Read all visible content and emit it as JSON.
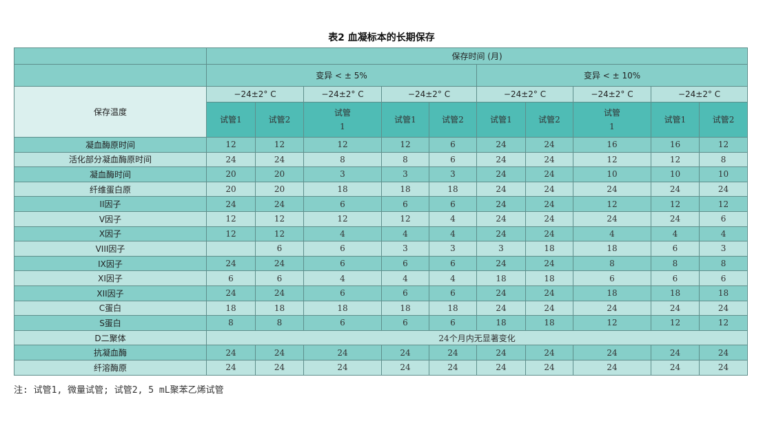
{
  "title": "表2 血凝标本的长期保存",
  "header": {
    "storage_time": "保存时间 (月)",
    "variation_5": "变异 < ± 5%",
    "variation_10": "变异 < ± 10%",
    "temperature_label": "保存温度",
    "temps": [
      "−24±2° C",
      "−24±2° C",
      "−24±2° C",
      "−24±2° C",
      "−24±2° C",
      "−24±2° C"
    ],
    "tubes": [
      "试管1",
      "试管2",
      "试管\n1",
      "试管1",
      "试管2",
      "试管1",
      "试管2",
      "试管\n1",
      "试管1",
      "试管2"
    ]
  },
  "rows": [
    {
      "label": "凝血酶原时间",
      "values": [
        "12",
        "12",
        "12",
        "12",
        "6",
        "24",
        "24",
        "16",
        "16",
        "12"
      ]
    },
    {
      "label": "活化部分凝血酶原时间",
      "values": [
        "24",
        "24",
        "8",
        "8",
        "6",
        "24",
        "24",
        "12",
        "12",
        "8"
      ]
    },
    {
      "label": "凝血酶时间",
      "values": [
        "20",
        "20",
        "3",
        "3",
        "3",
        "24",
        "24",
        "10",
        "10",
        "10"
      ]
    },
    {
      "label": "纤维蛋白原",
      "values": [
        "20",
        "20",
        "18",
        "18",
        "18",
        "24",
        "24",
        "24",
        "24",
        "24"
      ]
    },
    {
      "label": "II因子",
      "values": [
        "24",
        "24",
        "6",
        "6",
        "6",
        "24",
        "24",
        "12",
        "12",
        "12"
      ]
    },
    {
      "label": "V因子",
      "values": [
        "12",
        "12",
        "12",
        "12",
        "4",
        "24",
        "24",
        "24",
        "24",
        "6"
      ]
    },
    {
      "label": "X因子",
      "values": [
        "12",
        "12",
        "4",
        "4",
        "4",
        "24",
        "24",
        "4",
        "4",
        "4"
      ]
    },
    {
      "label": "VIII因子",
      "values": [
        "",
        "6",
        "6",
        "3",
        "3",
        "3",
        "18",
        "18",
        "6",
        "3"
      ]
    },
    {
      "label": "IX因子",
      "values": [
        "24",
        "24",
        "6",
        "6",
        "6",
        "24",
        "24",
        "8",
        "8",
        "8"
      ]
    },
    {
      "label": "XI因子",
      "values": [
        "6",
        "6",
        "4",
        "4",
        "4",
        "18",
        "18",
        "6",
        "6",
        "6"
      ]
    },
    {
      "label": "XII因子",
      "values": [
        "24",
        "24",
        "6",
        "6",
        "6",
        "24",
        "24",
        "18",
        "18",
        "18"
      ]
    },
    {
      "label": "C蛋白",
      "values": [
        "18",
        "18",
        "18",
        "18",
        "18",
        "24",
        "24",
        "24",
        "24",
        "24"
      ]
    },
    {
      "label": "S蛋白",
      "values": [
        "8",
        "8",
        "6",
        "6",
        "6",
        "18",
        "18",
        "12",
        "12",
        "12"
      ]
    },
    {
      "label": "D二聚体",
      "merged": "24个月内无显著变化"
    },
    {
      "label": "抗凝血酶",
      "values": [
        "24",
        "24",
        "24",
        "24",
        "24",
        "24",
        "24",
        "24",
        "24",
        "24"
      ]
    },
    {
      "label": "纤溶酶原",
      "values": [
        "24",
        "24",
        "24",
        "24",
        "24",
        "24",
        "24",
        "24",
        "24",
        "24"
      ]
    }
  ],
  "note": "注: 试管1, 微量试管; 试管2, 5 mL聚苯乙烯试管"
}
